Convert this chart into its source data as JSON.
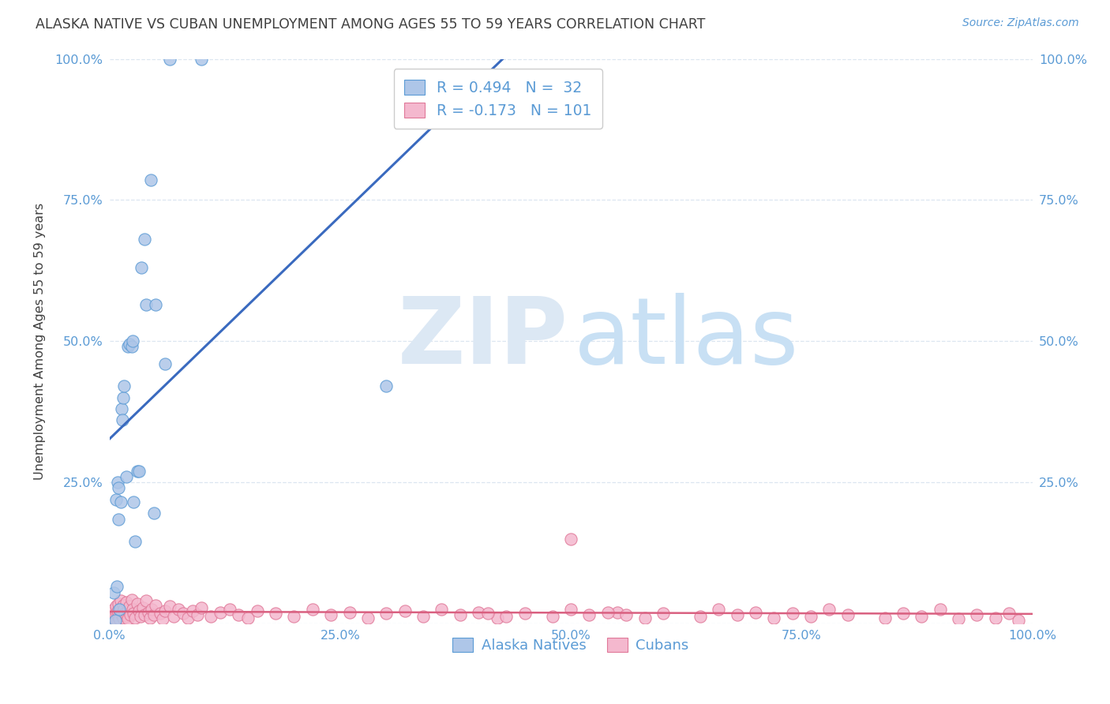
{
  "title": "ALASKA NATIVE VS CUBAN UNEMPLOYMENT AMONG AGES 55 TO 59 YEARS CORRELATION CHART",
  "source": "Source: ZipAtlas.com",
  "ylabel": "Unemployment Among Ages 55 to 59 years",
  "xlim": [
    0.0,
    1.0
  ],
  "ylim": [
    0.0,
    1.0
  ],
  "xticks": [
    0.0,
    0.25,
    0.5,
    0.75,
    1.0
  ],
  "xticklabels": [
    "0.0%",
    "25.0%",
    "50.0%",
    "75.0%",
    "100.0%"
  ],
  "yticks": [
    0.0,
    0.25,
    0.5,
    0.75,
    1.0
  ],
  "yticklabels": [
    "",
    "25.0%",
    "50.0%",
    "75.0%",
    "100.0%"
  ],
  "alaska_R": 0.494,
  "alaska_N": 32,
  "cuban_R": -0.173,
  "cuban_N": 101,
  "alaska_scatter_color": "#aec6e8",
  "alaska_edge_color": "#5b9bd5",
  "cuban_scatter_color": "#f4b8ce",
  "cuban_edge_color": "#e07898",
  "alaska_line_color": "#3a6abf",
  "cuban_line_color": "#d96080",
  "axis_label_color": "#5b9bd5",
  "title_color": "#404040",
  "grid_color": "#dce6f0",
  "bg_color": "#ffffff",
  "alaska_x": [
    0.005,
    0.006,
    0.007,
    0.008,
    0.009,
    0.01,
    0.01,
    0.011,
    0.012,
    0.013,
    0.014,
    0.015,
    0.016,
    0.018,
    0.02,
    0.022,
    0.024,
    0.025,
    0.026,
    0.028,
    0.03,
    0.032,
    0.035,
    0.038,
    0.04,
    0.045,
    0.048,
    0.05,
    0.06,
    0.065,
    0.1,
    0.3
  ],
  "alaska_y": [
    0.055,
    0.005,
    0.22,
    0.065,
    0.25,
    0.185,
    0.24,
    0.025,
    0.215,
    0.38,
    0.36,
    0.4,
    0.42,
    0.26,
    0.49,
    0.495,
    0.49,
    0.5,
    0.215,
    0.145,
    0.27,
    0.27,
    0.63,
    0.68,
    0.565,
    0.785,
    0.195,
    0.565,
    0.46,
    1.0,
    1.0,
    0.42
  ],
  "cuban_x": [
    0.003,
    0.004,
    0.005,
    0.005,
    0.006,
    0.007,
    0.008,
    0.008,
    0.009,
    0.01,
    0.01,
    0.011,
    0.012,
    0.012,
    0.013,
    0.014,
    0.015,
    0.015,
    0.016,
    0.017,
    0.018,
    0.019,
    0.02,
    0.02,
    0.022,
    0.023,
    0.024,
    0.025,
    0.026,
    0.028,
    0.03,
    0.032,
    0.034,
    0.036,
    0.038,
    0.04,
    0.042,
    0.044,
    0.046,
    0.048,
    0.05,
    0.055,
    0.058,
    0.06,
    0.065,
    0.07,
    0.075,
    0.08,
    0.085,
    0.09,
    0.095,
    0.1,
    0.11,
    0.12,
    0.13,
    0.14,
    0.15,
    0.16,
    0.18,
    0.2,
    0.22,
    0.24,
    0.26,
    0.28,
    0.3,
    0.32,
    0.34,
    0.36,
    0.38,
    0.4,
    0.42,
    0.45,
    0.48,
    0.5,
    0.52,
    0.55,
    0.58,
    0.6,
    0.64,
    0.66,
    0.68,
    0.7,
    0.72,
    0.74,
    0.76,
    0.78,
    0.8,
    0.84,
    0.86,
    0.88,
    0.9,
    0.92,
    0.94,
    0.96,
    0.975,
    0.985,
    0.5,
    0.54,
    0.56,
    0.41,
    0.43
  ],
  "cuban_y": [
    0.02,
    0.01,
    0.025,
    0.012,
    0.015,
    0.03,
    0.018,
    0.005,
    0.022,
    0.035,
    0.012,
    0.008,
    0.028,
    0.04,
    0.015,
    0.02,
    0.032,
    0.01,
    0.025,
    0.018,
    0.038,
    0.012,
    0.022,
    0.008,
    0.03,
    0.015,
    0.042,
    0.025,
    0.018,
    0.01,
    0.035,
    0.022,
    0.012,
    0.028,
    0.015,
    0.04,
    0.02,
    0.01,
    0.025,
    0.015,
    0.032,
    0.018,
    0.008,
    0.022,
    0.03,
    0.012,
    0.025,
    0.018,
    0.01,
    0.022,
    0.015,
    0.028,
    0.012,
    0.02,
    0.025,
    0.015,
    0.01,
    0.022,
    0.018,
    0.012,
    0.025,
    0.015,
    0.02,
    0.01,
    0.018,
    0.022,
    0.012,
    0.025,
    0.015,
    0.02,
    0.01,
    0.018,
    0.012,
    0.025,
    0.015,
    0.02,
    0.01,
    0.018,
    0.012,
    0.025,
    0.015,
    0.02,
    0.01,
    0.018,
    0.012,
    0.025,
    0.015,
    0.01,
    0.018,
    0.012,
    0.025,
    0.008,
    0.015,
    0.01,
    0.018,
    0.005,
    0.15,
    0.02,
    0.015,
    0.018,
    0.012
  ]
}
